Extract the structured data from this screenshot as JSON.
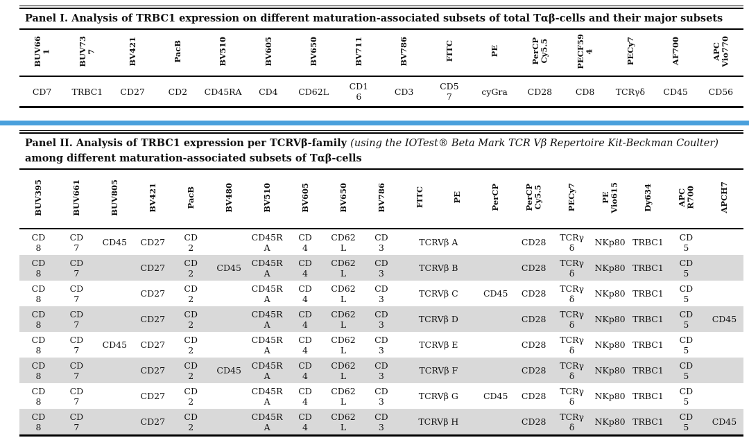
{
  "colors": {
    "divider_blue": "#4aa0dc",
    "row_shade": "#d9d9d9",
    "rule_black": "#000000",
    "text": "#111111"
  },
  "panel1": {
    "title": "Panel I. Analysis of TRBC1 expression on different maturation-associated subsets of total Tαβ-cells and their major subsets",
    "fluorochromes": [
      "BUV66\n1",
      "BUV73\n7",
      "BV421",
      "PacB",
      "BV510",
      "BV605",
      "BV650",
      "BV711",
      "BV786",
      "FITC",
      "PE",
      "PerCP\nCy5.5",
      "PECF59\n4",
      "PECy7",
      "AF700",
      "APC\nVio770"
    ],
    "markers": [
      "CD7",
      "TRBC1",
      "CD27",
      "CD2",
      "CD45RA",
      "CD4",
      "CD62L",
      "CD1\n6",
      "CD3",
      "CD5\n7",
      "cyGra",
      "CD28",
      "CD8",
      "TCRγδ",
      "CD45",
      "CD56"
    ]
  },
  "panel2": {
    "title_bold_lead": "Panel II. Analysis of TRBC1 expression per TCRVβ-family ",
    "title_italic": "(using the IOTest® Beta Mark TCR Vβ Repertoire Kit-Beckman Coulter)",
    "title_bold_tail": "among different maturation-associated subsets of Tαβ-cells",
    "fluorochromes": [
      "BUV395",
      "BUV661",
      "BUV805",
      "BV421",
      "PacB",
      "BV480",
      "BV510",
      "BV605",
      "BV650",
      "BV786",
      "FITC",
      "PE",
      "PerCP",
      "PerCP\nCy5.5",
      "PECy7",
      "PE\nVio615",
      "Dy634",
      "APC\nR700",
      "APCH7"
    ],
    "rows": [
      {
        "name": "A",
        "shaded": false,
        "cells": [
          "CD\n8",
          "CD\n7",
          "CD45",
          "CD27",
          "CD\n2",
          "",
          "CD45R\nA",
          "CD\n4",
          "CD62\nL",
          "CD\n3",
          "TCRVβ A",
          "",
          "CD28",
          "TCRγ\nδ",
          "NKp80",
          "TRBC1",
          "CD\n5",
          ""
        ]
      },
      {
        "name": "B",
        "shaded": true,
        "cells": [
          "CD\n8",
          "CD\n7",
          "",
          "CD27",
          "CD\n2",
          "CD45",
          "CD45R\nA",
          "CD\n4",
          "CD62\nL",
          "CD\n3",
          "TCRVβ B",
          "",
          "CD28",
          "TCRγ\nδ",
          "NKp80",
          "TRBC1",
          "CD\n5",
          ""
        ]
      },
      {
        "name": "C",
        "shaded": false,
        "cells": [
          "CD\n8",
          "CD\n7",
          "",
          "CD27",
          "CD\n2",
          "",
          "CD45R\nA",
          "CD\n4",
          "CD62\nL",
          "CD\n3",
          "TCRVβ C",
          "CD45",
          "CD28",
          "TCRγ\nδ",
          "NKp80",
          "TRBC1",
          "CD\n5",
          ""
        ]
      },
      {
        "name": "D",
        "shaded": true,
        "cells": [
          "CD\n8",
          "CD\n7",
          "",
          "CD27",
          "CD\n2",
          "",
          "CD45R\nA",
          "CD\n4",
          "CD62\nL",
          "CD\n3",
          "TCRVβ D",
          "",
          "CD28",
          "TCRγ\nδ",
          "NKp80",
          "TRBC1",
          "CD\n5",
          "CD45"
        ]
      },
      {
        "name": "E",
        "shaded": false,
        "cells": [
          "CD\n8",
          "CD\n7",
          "CD45",
          "CD27",
          "CD\n2",
          "",
          "CD45R\nA",
          "CD\n4",
          "CD62\nL",
          "CD\n3",
          "TCRVβ E",
          "",
          "CD28",
          "TCRγ\nδ",
          "NKp80",
          "TRBC1",
          "CD\n5",
          ""
        ]
      },
      {
        "name": "F",
        "shaded": true,
        "cells": [
          "CD\n8",
          "CD\n7",
          "",
          "CD27",
          "CD\n2",
          "CD45",
          "CD45R\nA",
          "CD\n4",
          "CD62\nL",
          "CD\n3",
          "TCRVβ F",
          "",
          "CD28",
          "TCRγ\nδ",
          "NKp80",
          "TRBC1",
          "CD\n5",
          ""
        ]
      },
      {
        "name": "G",
        "shaded": false,
        "cells": [
          "CD\n8",
          "CD\n7",
          "",
          "CD27",
          "CD\n2",
          "",
          "CD45R\nA",
          "CD\n4",
          "CD62\nL",
          "CD\n3",
          "TCRVβ G",
          "CD45",
          "CD28",
          "TCRγ\nδ",
          "NKp80",
          "TRBC1",
          "CD\n5",
          ""
        ]
      },
      {
        "name": "H",
        "shaded": true,
        "cells": [
          "CD\n8",
          "CD\n7",
          "",
          "CD27",
          "CD\n2",
          "",
          "CD45R\nA",
          "CD\n4",
          "CD62\nL",
          "CD\n3",
          "TCRVβ H",
          "",
          "CD28",
          "TCRγ\nδ",
          "NKp80",
          "TRBC1",
          "CD\n5",
          "CD45"
        ]
      }
    ]
  }
}
